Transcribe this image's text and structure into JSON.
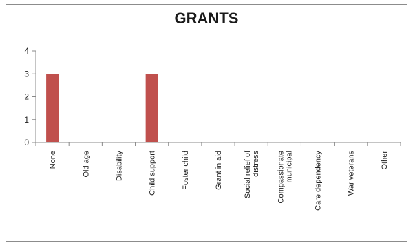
{
  "chart_data": {
    "type": "bar",
    "title": "GRANTS",
    "xlabel": "",
    "ylabel": "",
    "ylim": [
      0,
      4
    ],
    "yticks": [
      "0",
      "1",
      "2",
      "3",
      "4"
    ],
    "grid": false,
    "legend": "none",
    "categories": [
      [
        "None"
      ],
      [
        "Old age"
      ],
      [
        "Disability"
      ],
      [
        "Child support"
      ],
      [
        "Foster child"
      ],
      [
        "Grant in aid"
      ],
      [
        "Social relief of",
        "distress"
      ],
      [
        "Compassionate",
        "municipal"
      ],
      [
        "Care dependency"
      ],
      [
        "War veterans"
      ],
      [
        "Other"
      ]
    ],
    "values": [
      3,
      0,
      0,
      3,
      0,
      0,
      0,
      0,
      0,
      0,
      0
    ],
    "bar_color": "#c0504d"
  }
}
